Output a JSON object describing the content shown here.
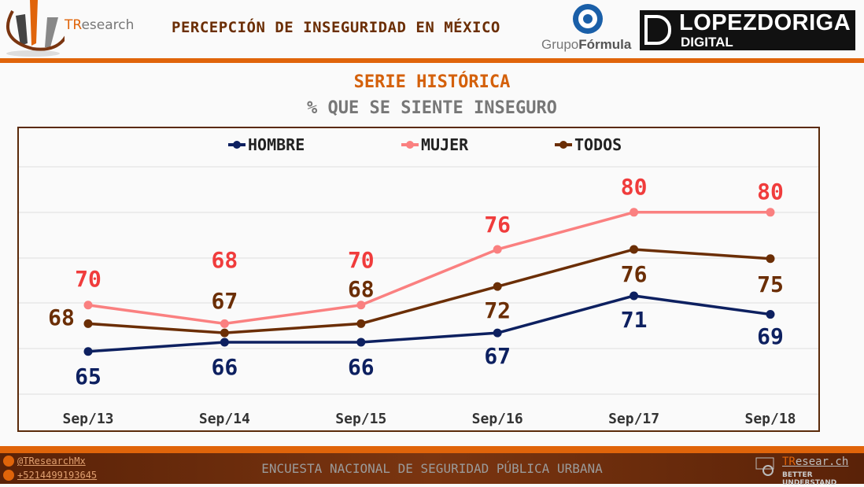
{
  "header": {
    "brand_prefix": "TR",
    "brand_suffix": "esearch",
    "title": "PERCEPCIÓN DE INSEGURIDAD EN MÉXICO",
    "partner1_a": "Grupo",
    "partner1_b": "Fórmula",
    "partner2_line1": "LOPEZDORIGA",
    "partner2_line2": "DIGITAL"
  },
  "subtitle1": "SERIE HISTÓRICA",
  "subtitle2": "% QUE SE SIENTE INSEGURO",
  "chart_data": {
    "type": "line",
    "title": "SERIE HISTÓRICA",
    "subtitle": "% QUE SE SIENTE INSEGURO",
    "categories": [
      "Sep/13",
      "Sep/14",
      "Sep/15",
      "Sep/16",
      "Sep/17",
      "Sep/18"
    ],
    "series": [
      {
        "name": "HOMBRE",
        "color": "#0d2060",
        "label_color": "#0d2060",
        "values": [
          65,
          66,
          66,
          67,
          71,
          69
        ]
      },
      {
        "name": "MUJER",
        "color": "#fa8080",
        "label_color": "#f03c3c",
        "values": [
          70,
          68,
          70,
          76,
          80,
          80
        ]
      },
      {
        "name": "TODOS",
        "color": "#6b2e05",
        "label_color": "#6b2e05",
        "values": [
          68,
          67,
          68,
          72,
          76,
          75
        ]
      }
    ],
    "ylim": [
      60.4,
      84.9
    ],
    "grid": true,
    "legend": "top"
  },
  "footer": {
    "twitter": "@TResearchMx",
    "phone": "+5214499193645",
    "center": "ENCUESTA NACIONAL DE SEGURIDAD PÚBLICA URBANA",
    "site_prefix": "TR",
    "site_suffix": "esear.ch",
    "tagline": "BETTER UNDERSTAND"
  }
}
